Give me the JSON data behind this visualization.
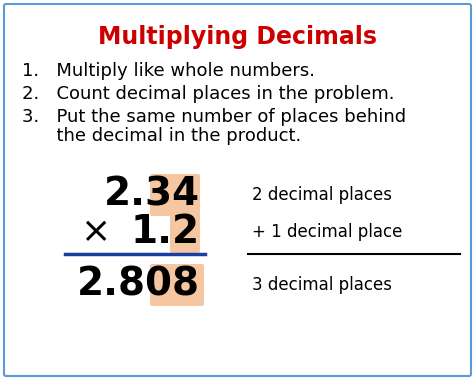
{
  "title": "Multiplying Decimals",
  "title_color": "#cc0000",
  "title_fontsize": 17,
  "bg_color": "#ffffff",
  "border_color": "#5b9bd5",
  "step1": "1.   Multiply like whole numbers.",
  "step2": "2.   Count decimal places in the problem.",
  "step3a": "3.   Put the same number of places behind",
  "step3b": "      the decimal in the product.",
  "step_fontsize": 13,
  "highlight_color": "#f5c6a0",
  "line_color": "#1a3fa0",
  "result_line_color": "#000000",
  "label1": "2 decimal places",
  "label2": "+ 1 decimal place",
  "label3": "3 decimal places",
  "label_fontsize": 12,
  "num_fontsize": 28
}
